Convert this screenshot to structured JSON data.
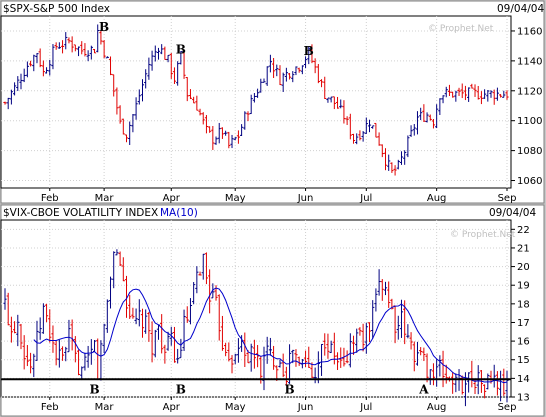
{
  "chart_data": [
    {
      "type": "ohlc",
      "title": "$SPX-S&P 500 Index",
      "date": "09/04/04",
      "watermark": "© Prophet.Net",
      "ylim": [
        1055,
        1170
      ],
      "yticks": [
        1060,
        1080,
        1100,
        1120,
        1140,
        1160
      ],
      "months": [
        {
          "label": "Feb",
          "i": 14
        },
        {
          "label": "Mar",
          "i": 31
        },
        {
          "label": "Apr",
          "i": 52
        },
        {
          "label": "May",
          "i": 72
        },
        {
          "label": "Jun",
          "i": 94
        },
        {
          "label": "Jul",
          "i": 113
        },
        {
          "label": "Aug",
          "i": 135
        },
        {
          "label": "Sep",
          "i": 157
        }
      ],
      "keys": [
        [
          0,
          1112
        ],
        [
          3,
          1122
        ],
        [
          7,
          1137
        ],
        [
          10,
          1146
        ],
        [
          12,
          1132
        ],
        [
          16,
          1150
        ],
        [
          20,
          1153
        ],
        [
          24,
          1147
        ],
        [
          28,
          1148
        ],
        [
          29,
          1160
        ],
        [
          32,
          1140
        ],
        [
          34,
          1120
        ],
        [
          36,
          1098
        ],
        [
          38,
          1091
        ],
        [
          41,
          1110
        ],
        [
          45,
          1138
        ],
        [
          48,
          1150
        ],
        [
          51,
          1140
        ],
        [
          53,
          1128
        ],
        [
          55,
          1143
        ],
        [
          57,
          1118
        ],
        [
          60,
          1110
        ],
        [
          63,
          1093
        ],
        [
          65,
          1088
        ],
        [
          68,
          1093
        ],
        [
          70,
          1083
        ],
        [
          73,
          1090
        ],
        [
          76,
          1108
        ],
        [
          80,
          1125
        ],
        [
          83,
          1140
        ],
        [
          86,
          1128
        ],
        [
          89,
          1133
        ],
        [
          92,
          1137
        ],
        [
          95,
          1145
        ],
        [
          97,
          1135
        ],
        [
          100,
          1118
        ],
        [
          103,
          1112
        ],
        [
          106,
          1103
        ],
        [
          109,
          1088
        ],
        [
          112,
          1094
        ],
        [
          114,
          1100
        ],
        [
          117,
          1086
        ],
        [
          119,
          1074
        ],
        [
          121,
          1065
        ],
        [
          123,
          1069
        ],
        [
          126,
          1085
        ],
        [
          129,
          1102
        ],
        [
          132,
          1104
        ],
        [
          134,
          1100
        ],
        [
          136,
          1118
        ]
      ],
      "series": [],
      "annotations": [
        {
          "label": "B",
          "i": 31,
          "value": 1160
        },
        {
          "label": "B",
          "i": 55,
          "value": 1145
        },
        {
          "label": "B",
          "i": 95,
          "value": 1144
        }
      ]
    },
    {
      "type": "ohlc",
      "title": "$VIX-CBOE VOLATILITY INDEX",
      "ma_label": "MA(10)",
      "date": "09/04/04",
      "watermark": "© Prophet.Net",
      "ylim": [
        13,
        22.5
      ],
      "yticks": [
        13,
        14,
        15,
        16,
        17,
        18,
        19,
        20,
        21,
        22
      ],
      "support_level": 13.95,
      "months": [
        {
          "label": "Feb",
          "i": 14
        },
        {
          "label": "Mar",
          "i": 31
        },
        {
          "label": "Apr",
          "i": 52
        },
        {
          "label": "May",
          "i": 72
        },
        {
          "label": "Jun",
          "i": 94
        },
        {
          "label": "Jul",
          "i": 113
        },
        {
          "label": "Aug",
          "i": 135
        },
        {
          "label": "Sep",
          "i": 157
        }
      ],
      "keys": [
        [
          0,
          18.0
        ],
        [
          2,
          16.6
        ],
        [
          4,
          17.2
        ],
        [
          6,
          15.5
        ],
        [
          8,
          14.6
        ],
        [
          10,
          16.0
        ],
        [
          12,
          17.7
        ],
        [
          14,
          16.5
        ],
        [
          16,
          15.2
        ],
        [
          18,
          15.0
        ],
        [
          20,
          16.2
        ],
        [
          22,
          15.0
        ],
        [
          24,
          14.4
        ],
        [
          26,
          14.8
        ],
        [
          28,
          15.8
        ],
        [
          29,
          14.3
        ],
        [
          31,
          16.8
        ],
        [
          33,
          19.4
        ],
        [
          34,
          21.0
        ],
        [
          36,
          20.2
        ],
        [
          38,
          18.2
        ],
        [
          40,
          16.8
        ],
        [
          42,
          17.2
        ],
        [
          44,
          16.8
        ],
        [
          46,
          15.8
        ],
        [
          48,
          16.8
        ],
        [
          50,
          15.4
        ],
        [
          52,
          16.0
        ],
        [
          54,
          14.8
        ],
        [
          56,
          16.8
        ],
        [
          58,
          17.6
        ],
        [
          60,
          19.4
        ],
        [
          62,
          20.4
        ],
        [
          64,
          18.6
        ],
        [
          66,
          17.8
        ],
        [
          68,
          16.0
        ],
        [
          70,
          15.4
        ],
        [
          72,
          15.0
        ],
        [
          74,
          16.0
        ],
        [
          76,
          15.1
        ],
        [
          78,
          15.3
        ],
        [
          80,
          14.5
        ],
        [
          82,
          15.4
        ],
        [
          84,
          15.1
        ],
        [
          86,
          14.9
        ],
        [
          88,
          14.3
        ],
        [
          90,
          15.6
        ],
        [
          92,
          14.6
        ],
        [
          94,
          15.0
        ],
        [
          96,
          14.0
        ],
        [
          98,
          15.1
        ],
        [
          100,
          16.0
        ],
        [
          102,
          15.4
        ],
        [
          104,
          15.0
        ],
        [
          106,
          14.6
        ],
        [
          108,
          15.7
        ],
        [
          110,
          16.4
        ],
        [
          112,
          16.1
        ],
        [
          114,
          16.6
        ],
        [
          116,
          18.0
        ],
        [
          117,
          19.3
        ],
        [
          119,
          18.9
        ],
        [
          121,
          17.6
        ],
        [
          123,
          16.4
        ],
        [
          124,
          17.1
        ],
        [
          126,
          16.0
        ],
        [
          128,
          15.4
        ],
        [
          130,
          15.2
        ],
        [
          132,
          14.6
        ],
        [
          134,
          14.2
        ],
        [
          136,
          14.5
        ],
        [
          138,
          14.1
        ],
        [
          140,
          13.9
        ],
        [
          142,
          13.6
        ],
        [
          144,
          13.8
        ],
        [
          146,
          14.2
        ],
        [
          148,
          13.9
        ],
        [
          150,
          13.6
        ],
        [
          152,
          14.0
        ],
        [
          154,
          13.7
        ],
        [
          157,
          13.4
        ]
      ],
      "series": [],
      "annotations": [
        {
          "label": "B",
          "i": 28,
          "value": 13.2
        },
        {
          "label": "B",
          "i": 55,
          "value": 13.2
        },
        {
          "label": "B",
          "i": 89,
          "value": 13.2
        },
        {
          "label": "A",
          "i": 131,
          "value": 13.2
        }
      ]
    }
  ]
}
